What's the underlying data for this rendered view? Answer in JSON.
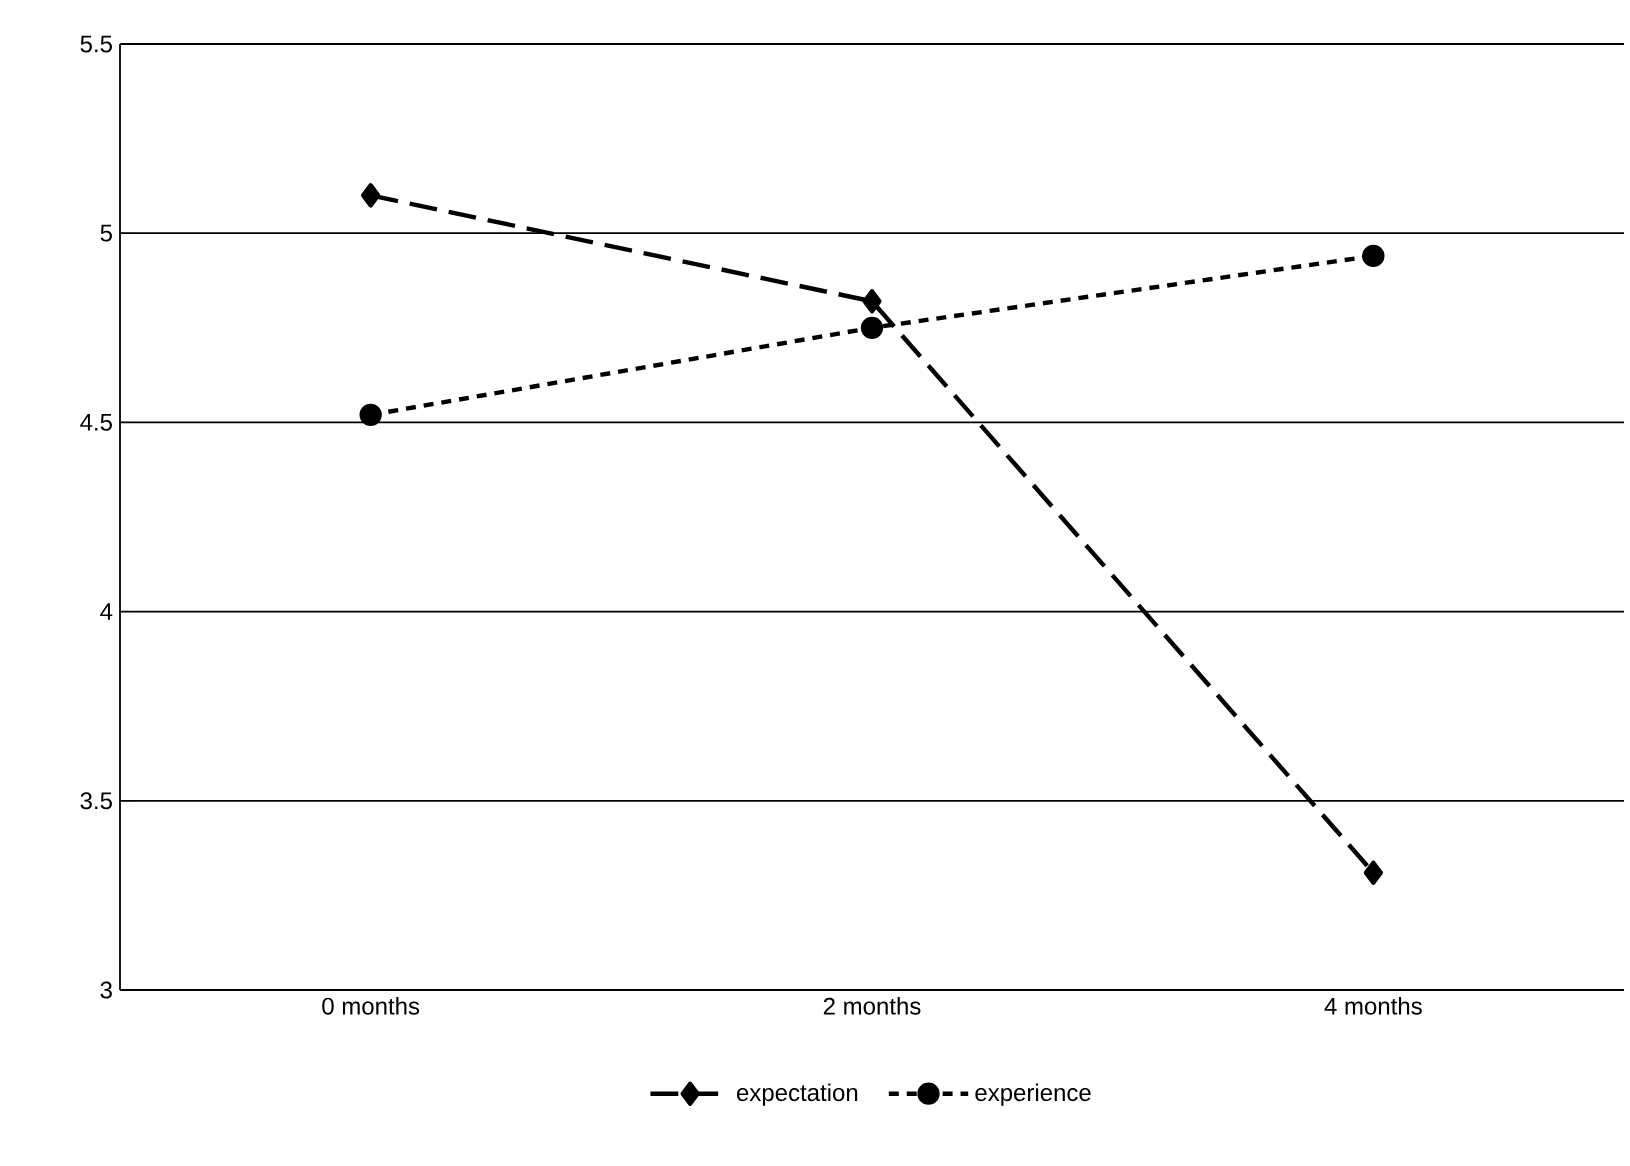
{
  "chart_data": {
    "type": "line",
    "categories": [
      "0 months",
      "2 months",
      "4 months"
    ],
    "series": [
      {
        "name": "expectation",
        "color": "#000000",
        "values": [
          5.1,
          4.82,
          3.31
        ],
        "marker": "diamond",
        "line_style": "dashed"
      },
      {
        "name": "experience",
        "color": "#000000",
        "values": [
          4.52,
          4.75,
          4.94
        ],
        "marker": "circle",
        "line_style": "dotted"
      }
    ],
    "ylim": [
      3,
      5.5
    ],
    "yticks": [
      3,
      3.5,
      4,
      4.5,
      5,
      5.5
    ],
    "grid": "y",
    "legend": "bottom"
  }
}
